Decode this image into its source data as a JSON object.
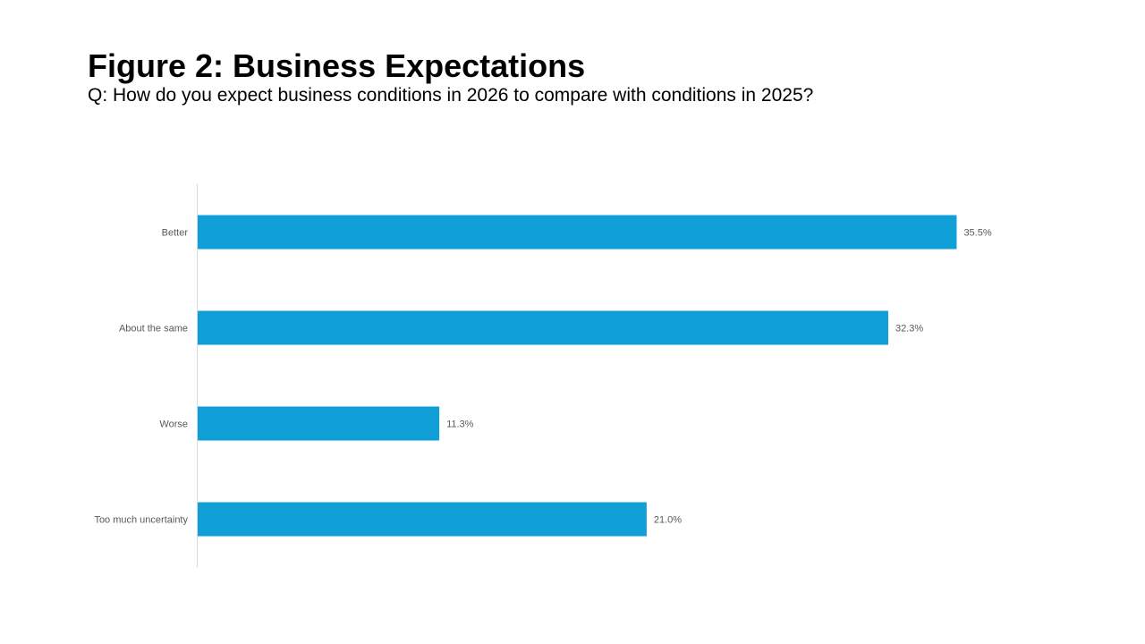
{
  "header": {
    "title": "Figure 2: Business Expectations",
    "subtitle": "Q: How do you expect business conditions in 2026 to compare with conditions in 2025?"
  },
  "colors": {
    "bar": "#119fd7",
    "axis": "#d9d9d9",
    "label": "#595959"
  },
  "chart_data": {
    "type": "bar",
    "orientation": "horizontal",
    "title": "Figure 2: Business Expectations",
    "subtitle": "Q: How do you expect business conditions in 2026 to compare with conditions in 2025?",
    "categories": [
      "Better",
      "About the same",
      "Worse",
      "Too much uncertainty"
    ],
    "values": [
      35.5,
      32.3,
      11.3,
      21.0
    ],
    "value_labels": [
      "35.5%",
      "32.3%",
      "11.3%",
      "21.0%"
    ],
    "xlabel": "",
    "ylabel": "",
    "xlim": [
      0,
      40
    ],
    "grid": false,
    "legend": "none"
  }
}
